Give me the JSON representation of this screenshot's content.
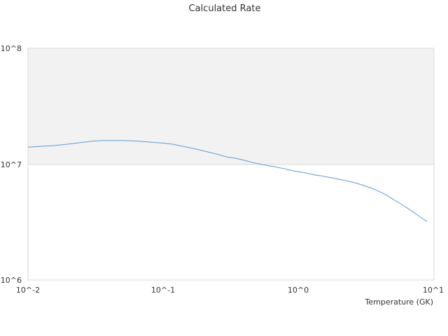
{
  "chart_data": {
    "type": "line",
    "title": "Calculated Rate",
    "xlabel": "Temperature (GK)",
    "ylabel": "",
    "x_scale": "log",
    "y_scale": "log",
    "xlim": [
      0.01,
      10
    ],
    "ylim": [
      1000000,
      100000000
    ],
    "x_ticks": [
      "10^-2",
      "10^-1",
      "10^0",
      "10^1"
    ],
    "y_ticks": [
      "10^6",
      "10^7",
      "10^8"
    ],
    "band_color": "#f2f2f2",
    "line_color": "#5b9bd5",
    "grid": true,
    "legend": "none",
    "series": [
      {
        "x": [
          0.01,
          0.011,
          0.013,
          0.015,
          0.018,
          0.02,
          0.025,
          0.03,
          0.035,
          0.04,
          0.05,
          0.06,
          0.07,
          0.08,
          0.09,
          0.1,
          0.12,
          0.13,
          0.15,
          0.16,
          0.18,
          0.2,
          0.25,
          0.3,
          0.35,
          0.4,
          0.45,
          0.5,
          0.6,
          0.7,
          0.8,
          0.9,
          1.0,
          1.2,
          1.3,
          1.5,
          1.8,
          2.0,
          2.5,
          3.0,
          3.5,
          4.0,
          4.5,
          5.0,
          6.0,
          7.0,
          8.0,
          9.0
        ],
        "y": [
          14000000,
          14100000,
          14300000,
          14400000,
          14700000,
          14900000,
          15400000,
          15800000,
          16000000,
          16000000,
          16000000,
          15900000,
          15700000,
          15500000,
          15300000,
          15200000,
          14800000,
          14500000,
          14000000,
          13800000,
          13400000,
          13000000,
          12200000,
          11500000,
          11200000,
          10800000,
          10400000,
          10100000,
          9700000,
          9400000,
          9100000,
          8800000,
          8600000,
          8300000,
          8100000,
          7900000,
          7600000,
          7400000,
          7000000,
          6600000,
          6200000,
          5800000,
          5400000,
          5000000,
          4400000,
          3900000,
          3500000,
          3200000
        ]
      }
    ]
  }
}
